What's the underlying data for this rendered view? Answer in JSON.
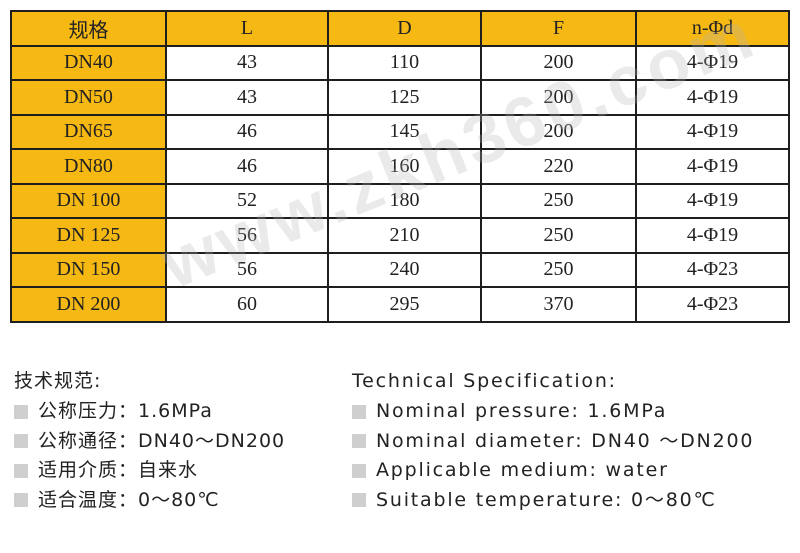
{
  "table": {
    "headers": [
      "规格",
      "L",
      "D",
      "F",
      "n-Φd"
    ],
    "rows": [
      [
        "DN40",
        "43",
        "110",
        "200",
        "4-Φ19"
      ],
      [
        "DN50",
        "43",
        "125",
        "200",
        "4-Φ19"
      ],
      [
        "DN65",
        "46",
        "145",
        "200",
        "4-Φ19"
      ],
      [
        "DN80",
        "46",
        "160",
        "220",
        "4-Φ19"
      ],
      [
        "DN 100",
        "52",
        "180",
        "250",
        "4-Φ19"
      ],
      [
        "DN 125",
        "56",
        "210",
        "250",
        "4-Φ19"
      ],
      [
        "DN 150",
        "56",
        "240",
        "250",
        "4-Φ23"
      ],
      [
        "DN 200",
        "60",
        "295",
        "370",
        "4-Φ23"
      ]
    ]
  },
  "watermark": "www.zkh360.com",
  "notes_cn": {
    "title": "技术规范:",
    "items": [
      "公称压力：1.6MPa",
      "公称通径：DN40～DN200",
      "适用介质：自来水",
      "适合温度：0～80℃"
    ]
  },
  "notes_en": {
    "title": "Technical Specification:",
    "items": [
      "Nominal pressure: 1.6MPa",
      "Nominal diameter: DN40 ～DN200",
      "Applicable medium: water",
      "Suitable temperature: 0～80℃"
    ]
  },
  "colors": {
    "header_fill": "#f6b913",
    "border": "#1e1e1e",
    "bullet": "#cfcfcf"
  }
}
